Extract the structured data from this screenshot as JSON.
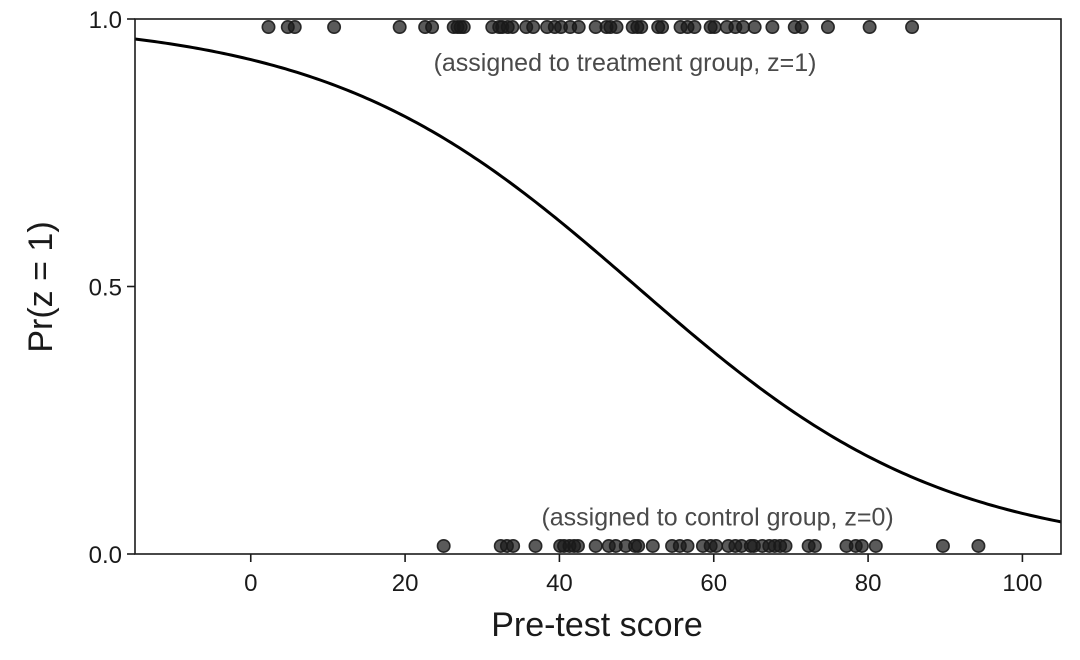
{
  "chart_data": {
    "type": "scatter",
    "title": "",
    "xlabel": "Pre-test score",
    "ylabel": "Pr(z = 1)",
    "xlim": [
      -15,
      105
    ],
    "ylim": [
      0,
      1
    ],
    "x_ticks": [
      0,
      20,
      40,
      60,
      80,
      100
    ],
    "y_ticks": [
      0.0,
      0.5,
      1.0
    ],
    "y_tick_labels": [
      "0.0",
      "0.5",
      "1.0"
    ],
    "grid": false,
    "curve": {
      "kind": "logistic",
      "intercept": 2.5,
      "slope": -0.05,
      "description": "fitted probability Pr(z=1) vs pre-test score"
    },
    "series": [
      {
        "name": "",
        "group": "treatment",
        "z": 1,
        "y_display": 0.985,
        "x": [
          2.3,
          4.8,
          5.7,
          10.8,
          19.3,
          22.6,
          23.5,
          26.3,
          26.8,
          27.2,
          27.6,
          31.3,
          32.2,
          32.6,
          33.3,
          33.9,
          35.7,
          36.6,
          38.4,
          39.4,
          40.2,
          41.4,
          42.5,
          44.7,
          46.1,
          46.6,
          47.4,
          49.5,
          50.1,
          50.6,
          52.8,
          53.3,
          55.7,
          56.6,
          57.5,
          59.6,
          60.1,
          61.7,
          62.8,
          63.8,
          65.3,
          67.6,
          70.5,
          71.4,
          74.8,
          80.2,
          85.7
        ],
        "color": "#1a1a1a"
      },
      {
        "name": "",
        "group": "control",
        "z": 0,
        "y_display": 0.015,
        "x": [
          25.0,
          32.4,
          33.2,
          34.0,
          36.9,
          40.1,
          40.6,
          41.3,
          41.9,
          42.4,
          44.7,
          46.4,
          47.3,
          48.6,
          49.8,
          50.2,
          52.1,
          54.6,
          55.6,
          56.6,
          58.6,
          59.6,
          60.3,
          61.9,
          62.8,
          63.6,
          64.8,
          65.2,
          66.3,
          67.2,
          67.9,
          68.6,
          69.3,
          72.3,
          73.1,
          77.2,
          78.4,
          79.2,
          81.0,
          89.7,
          94.3
        ],
        "color": "#1a1a1a"
      }
    ],
    "annotations": [
      {
        "text": "(assigned to treatment group, z=1)",
        "x": 48.5,
        "y": 0.92
      },
      {
        "text": "(assigned to control group, z=0)",
        "x": 60.5,
        "y": 0.07
      }
    ]
  }
}
